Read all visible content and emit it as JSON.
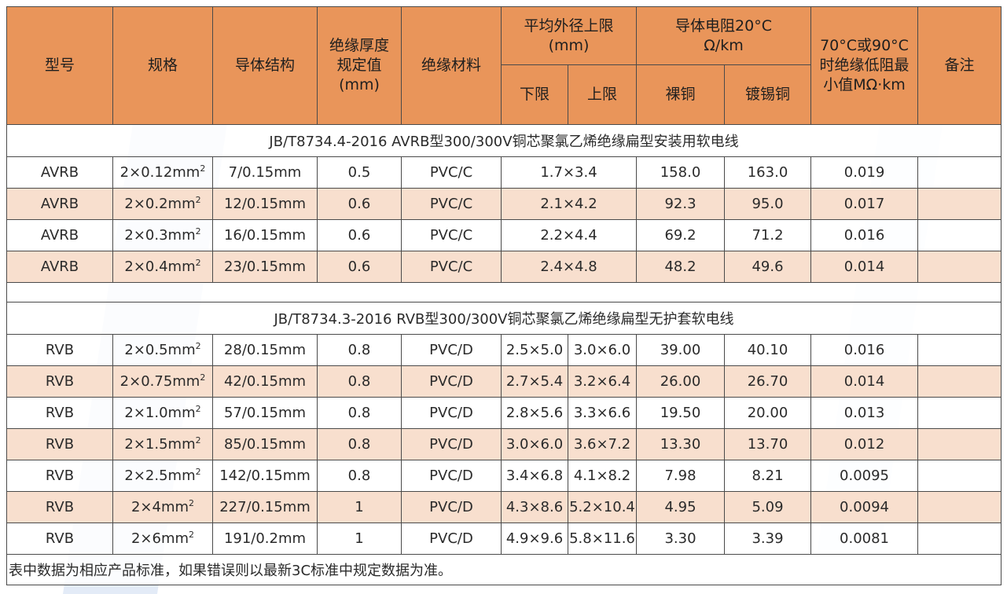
{
  "header": {
    "model": "型号",
    "spec": "规格",
    "structure": "导体结构",
    "insulation_thickness": "绝缘厚度规定值(mm)",
    "insulation_material": "绝缘材料",
    "avg_outer_diameter": "平均外径上限(mm)",
    "lower": "下限",
    "upper": "上限",
    "resistance": "导体电阻20°C Ω/km",
    "bare_copper": "裸铜",
    "tinned_copper": "镀锡铜",
    "insulation_resistance": "70°C或90°C时绝缘低阻最小值MΩ·km",
    "remark": "备注"
  },
  "sections": [
    {
      "title": "JB/T8734.4-2016 AVRB型300/300V铜芯聚氯乙烯绝缘扁型安装用软电线",
      "rows": [
        {
          "model": "AVRB",
          "spec": "2×0.12mm",
          "structure": "7/0.15mm",
          "thickness": "0.5",
          "material": "PVC/C",
          "outer": "1.7×3.4",
          "bare": "158.0",
          "tinned": "163.0",
          "ins_res": "0.019",
          "remark": ""
        },
        {
          "model": "AVRB",
          "spec": "2×0.2mm",
          "structure": "12/0.15mm",
          "thickness": "0.6",
          "material": "PVC/C",
          "outer": "2.1×4.2",
          "bare": "92.3",
          "tinned": "95.0",
          "ins_res": "0.017",
          "remark": ""
        },
        {
          "model": "AVRB",
          "spec": "2×0.3mm",
          "structure": "16/0.15mm",
          "thickness": "0.6",
          "material": "PVC/C",
          "outer": "2.2×4.4",
          "bare": "69.2",
          "tinned": "71.2",
          "ins_res": "0.016",
          "remark": ""
        },
        {
          "model": "AVRB",
          "spec": "2×0.4mm",
          "structure": "23/0.15mm",
          "thickness": "0.6",
          "material": "PVC/C",
          "outer": "2.4×4.8",
          "bare": "48.2",
          "tinned": "49.6",
          "ins_res": "0.014",
          "remark": ""
        }
      ]
    },
    {
      "title": "JB/T8734.3-2016 RVB型300/300V铜芯聚氯乙烯绝缘扁型无护套软电线",
      "rows": [
        {
          "model": "RVB",
          "spec": "2×0.5mm",
          "structure": "28/0.15mm",
          "thickness": "0.8",
          "material": "PVC/D",
          "lower": "2.5×5.0",
          "upper": "3.0×6.0",
          "bare": "39.00",
          "tinned": "40.10",
          "ins_res": "0.016",
          "remark": ""
        },
        {
          "model": "RVB",
          "spec": "2×0.75mm",
          "structure": "42/0.15mm",
          "thickness": "0.8",
          "material": "PVC/D",
          "lower": "2.7×5.4",
          "upper": "3.2×6.4",
          "bare": "26.00",
          "tinned": "26.70",
          "ins_res": "0.014",
          "remark": ""
        },
        {
          "model": "RVB",
          "spec": "2×1.0mm",
          "structure": "57/0.15mm",
          "thickness": "0.8",
          "material": "PVC/D",
          "lower": "2.8×5.6",
          "upper": "3.3×6.6",
          "bare": "19.50",
          "tinned": "20.00",
          "ins_res": "0.013",
          "remark": ""
        },
        {
          "model": "RVB",
          "spec": "2×1.5mm",
          "structure": "85/0.15mm",
          "thickness": "0.8",
          "material": "PVC/D",
          "lower": "3.0×6.0",
          "upper": "3.6×7.2",
          "bare": "13.30",
          "tinned": "13.70",
          "ins_res": "0.012",
          "remark": ""
        },
        {
          "model": "RVB",
          "spec": "2×2.5mm",
          "structure": "142/0.15mm",
          "thickness": "0.8",
          "material": "PVC/D",
          "lower": "3.4×6.8",
          "upper": "4.1×8.2",
          "bare": "7.98",
          "tinned": "8.21",
          "ins_res": "0.0095",
          "remark": ""
        },
        {
          "model": "RVB",
          "spec": "2×4mm",
          "structure": "227/0.15mm",
          "thickness": "1",
          "material": "PVC/D",
          "lower": "4.3×8.6",
          "upper": "5.2×10.4",
          "bare": "4.95",
          "tinned": "5.09",
          "ins_res": "0.0094",
          "remark": ""
        },
        {
          "model": "RVB",
          "spec": "2×6mm",
          "structure": "191/0.2mm",
          "thickness": "1",
          "material": "PVC/D",
          "lower": "4.9×9.6",
          "upper": "5.8×11.6",
          "bare": "3.30",
          "tinned": "3.39",
          "ins_res": "0.0081",
          "remark": ""
        }
      ]
    }
  ],
  "unit_superscript": "2",
  "note": "表中数据为相应产品标准，如果错误则以最新3C标准中规定数据为准。",
  "colors": {
    "header_bg": "#e9955a",
    "even_row_bg": "#f8dfce",
    "border": "#4a4a4a",
    "watermark": "#e3ebf7"
  }
}
